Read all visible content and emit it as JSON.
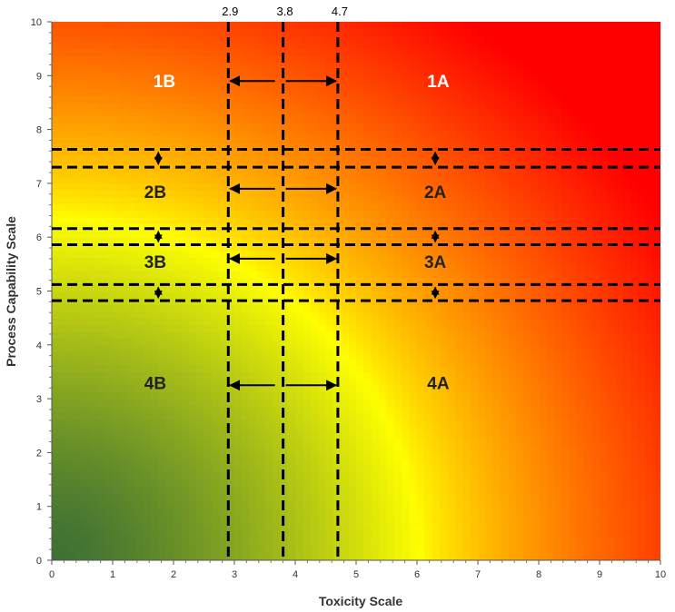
{
  "chart_data": {
    "type": "heatmap",
    "xlabel": "Toxicity Scale",
    "ylabel": "Process Capability Scale",
    "xlim": [
      0,
      10
    ],
    "ylim": [
      0,
      10
    ],
    "x_ticks": [
      "0",
      "1",
      "2",
      "3",
      "4",
      "5",
      "6",
      "7",
      "8",
      "9",
      "10"
    ],
    "y_ticks": [
      "0",
      "1",
      "2",
      "3",
      "4",
      "5",
      "6",
      "7",
      "8",
      "9",
      "10"
    ],
    "gradient": {
      "low_color": "#3d7034",
      "mid_color": "#ffff00",
      "high_color": "#ff0000"
    },
    "vertical_lines": [
      {
        "x": 2.9,
        "label": "2.9"
      },
      {
        "x": 3.8,
        "label": "3.8"
      },
      {
        "x": 4.7,
        "label": "4.7"
      }
    ],
    "horizontal_band_lines": [
      7.63,
      7.3,
      6.16,
      5.86,
      5.12,
      4.82
    ],
    "range_arrows_y": [
      8.9,
      6.9,
      5.6,
      3.25
    ],
    "band_arrows": [
      {
        "y_top": 7.63,
        "y_bottom": 7.3
      },
      {
        "y_top": 6.16,
        "y_bottom": 5.86
      },
      {
        "y_top": 5.12,
        "y_bottom": 4.82
      }
    ],
    "band_arrow_x": [
      1.75,
      6.3
    ],
    "zones": [
      {
        "label": "1B",
        "x": 1.85,
        "y": 8.9,
        "color": "#ffffff"
      },
      {
        "label": "1A",
        "x": 6.35,
        "y": 8.9,
        "color": "#ffffff"
      },
      {
        "label": "2B",
        "x": 1.7,
        "y": 6.85,
        "color": "#222222"
      },
      {
        "label": "2A",
        "x": 6.3,
        "y": 6.85,
        "color": "#222222"
      },
      {
        "label": "3B",
        "x": 1.7,
        "y": 5.55,
        "color": "#222222"
      },
      {
        "label": "3A",
        "x": 6.3,
        "y": 5.55,
        "color": "#222222"
      },
      {
        "label": "4B",
        "x": 1.7,
        "y": 3.3,
        "color": "#222222"
      },
      {
        "label": "4A",
        "x": 6.35,
        "y": 3.3,
        "color": "#222222"
      }
    ],
    "grid": false
  }
}
